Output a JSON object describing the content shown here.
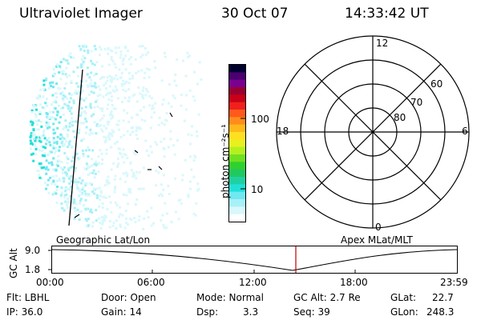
{
  "header": {
    "title": "Ultraviolet Imager",
    "date": "30 Oct 07",
    "time": "14:33:42 UT"
  },
  "colorbar": {
    "unit_label": "photon cm⁻²s⁻¹",
    "ticks": [
      "100",
      "10"
    ],
    "colors": [
      "#000030",
      "#4a0070",
      "#7a0090",
      "#9a0030",
      "#c80018",
      "#f0201c",
      "#ff5a1c",
      "#ff8c1c",
      "#ffb81c",
      "#ffe020",
      "#e8f020",
      "#b4f020",
      "#70e020",
      "#30d030",
      "#20c860",
      "#20d0a0",
      "#20e0d8",
      "#70e8f0",
      "#a8f0f8",
      "#d8f8fc",
      "#ffffff"
    ],
    "dot_colors": [
      "#20e0d8",
      "#70e8f0",
      "#a8f0f8",
      "#d8f8fc"
    ]
  },
  "polar": {
    "hour_labels": [
      "12",
      "18",
      "6",
      "0"
    ],
    "lat_labels": [
      "60",
      "70",
      "80"
    ]
  },
  "coords": {
    "left": "Geographic Lat/Lon",
    "right": "Apex MLat/MLT"
  },
  "altitude": {
    "axis_label": "GC Alt",
    "ticks": [
      "9.0",
      "1.8"
    ],
    "time_ticks": [
      "00:00",
      "06:00",
      "12:00",
      "18:00",
      "23:59"
    ],
    "current_time_color": "#c00000"
  },
  "status": {
    "row1": {
      "flt": "Flt: LBHL",
      "door": "Door: Open",
      "mode": "Mode: Normal",
      "gc_alt": "GC Alt: 2.7 Re",
      "glat_label": "GLat:",
      "glat": "22.7"
    },
    "row2": {
      "ip": "IP: 36.0",
      "gain": "Gain: 14",
      "dsp_label": "Dsp:",
      "dsp": "3.3",
      "seq": "Seq: 39",
      "glon_label": "GLon:",
      "glon": "248.3"
    }
  }
}
